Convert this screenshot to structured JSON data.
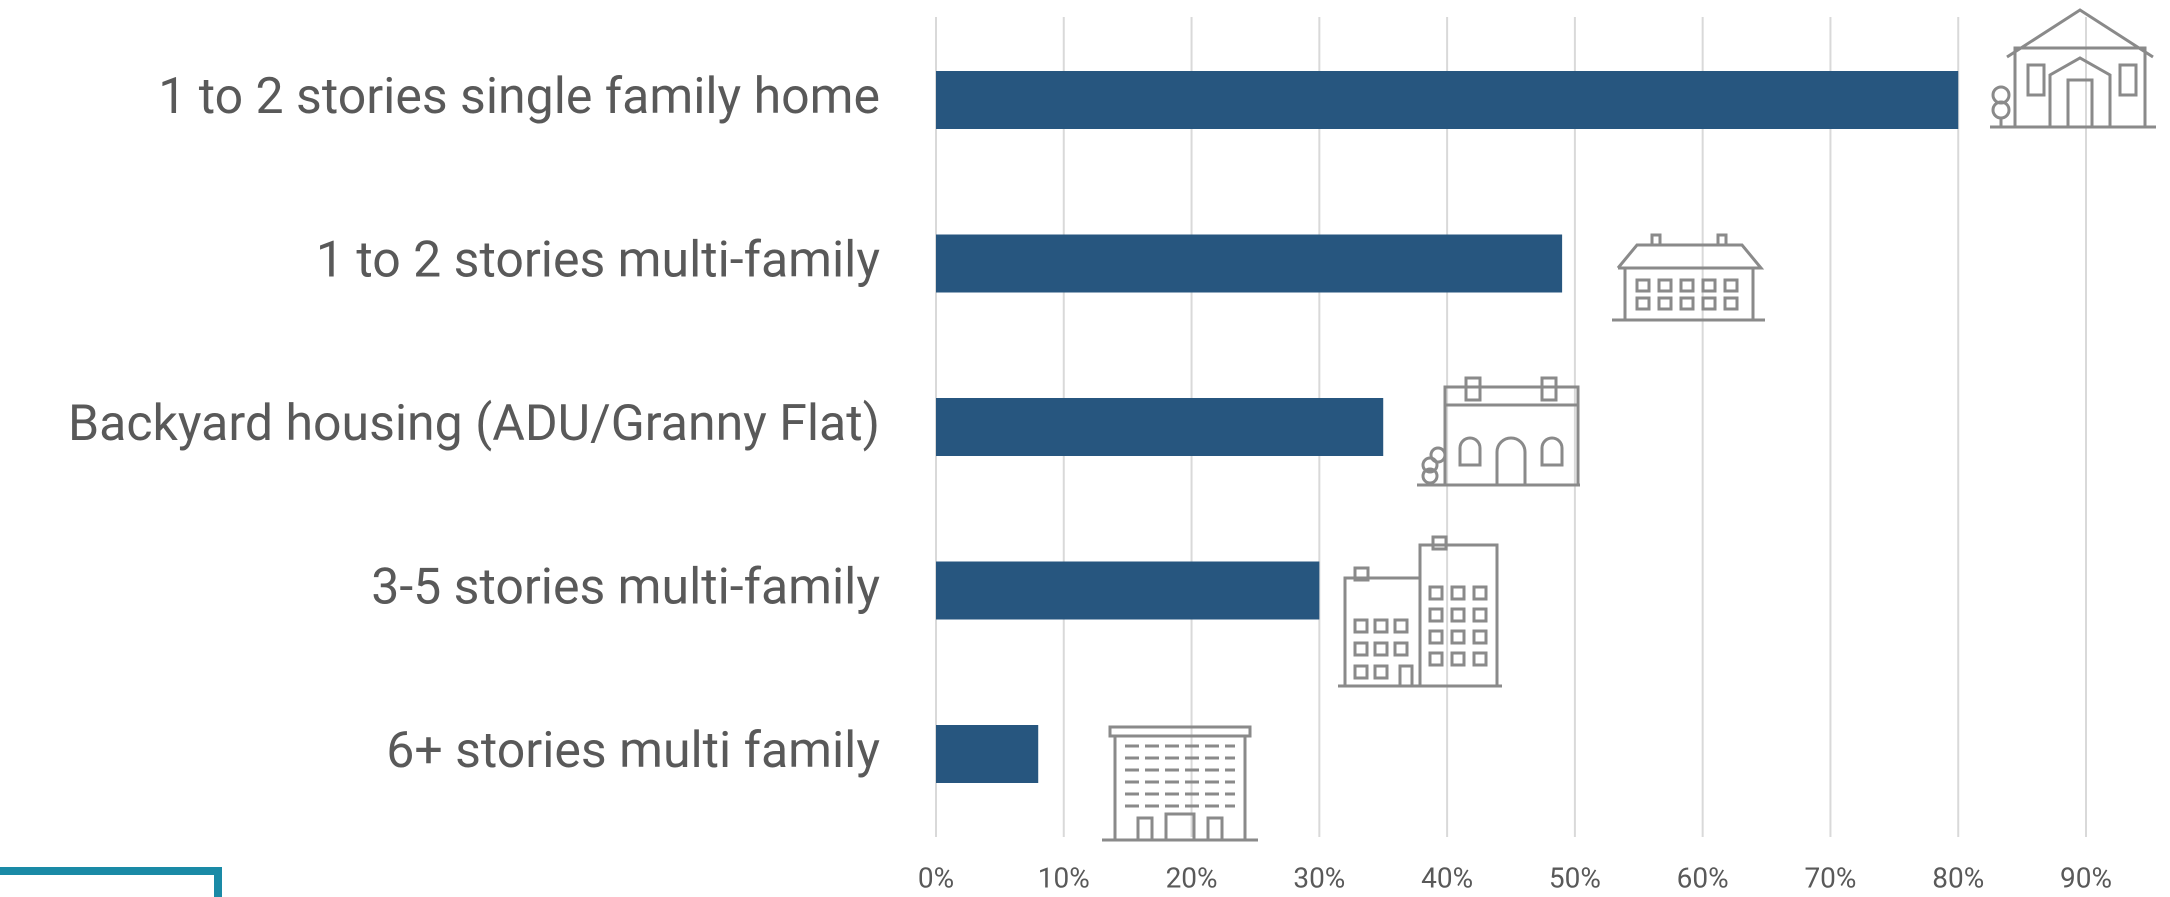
{
  "chart_data": {
    "type": "hbar",
    "categories": [
      "1 to 2 stories single family home",
      "1 to 2 stories multi-family",
      "Backyard housing (ADU/Granny Flat)",
      "3-5 stories multi-family",
      "6+ stories multi family"
    ],
    "values": [
      80,
      49,
      35,
      30,
      8
    ],
    "color": "#27567f",
    "xlim": [
      0,
      90
    ],
    "xticks": [
      {
        "value": 0,
        "label": "0%"
      },
      {
        "value": 10,
        "label": "10%"
      },
      {
        "value": 20,
        "label": "20%"
      },
      {
        "value": 30,
        "label": "30%"
      },
      {
        "value": 40,
        "label": "40%"
      },
      {
        "value": 50,
        "label": "50%"
      },
      {
        "value": 60,
        "label": "60%"
      },
      {
        "value": 70,
        "label": "70%"
      },
      {
        "value": 80,
        "label": "80%"
      },
      {
        "value": 90,
        "label": "90%"
      }
    ],
    "grid": true
  }
}
